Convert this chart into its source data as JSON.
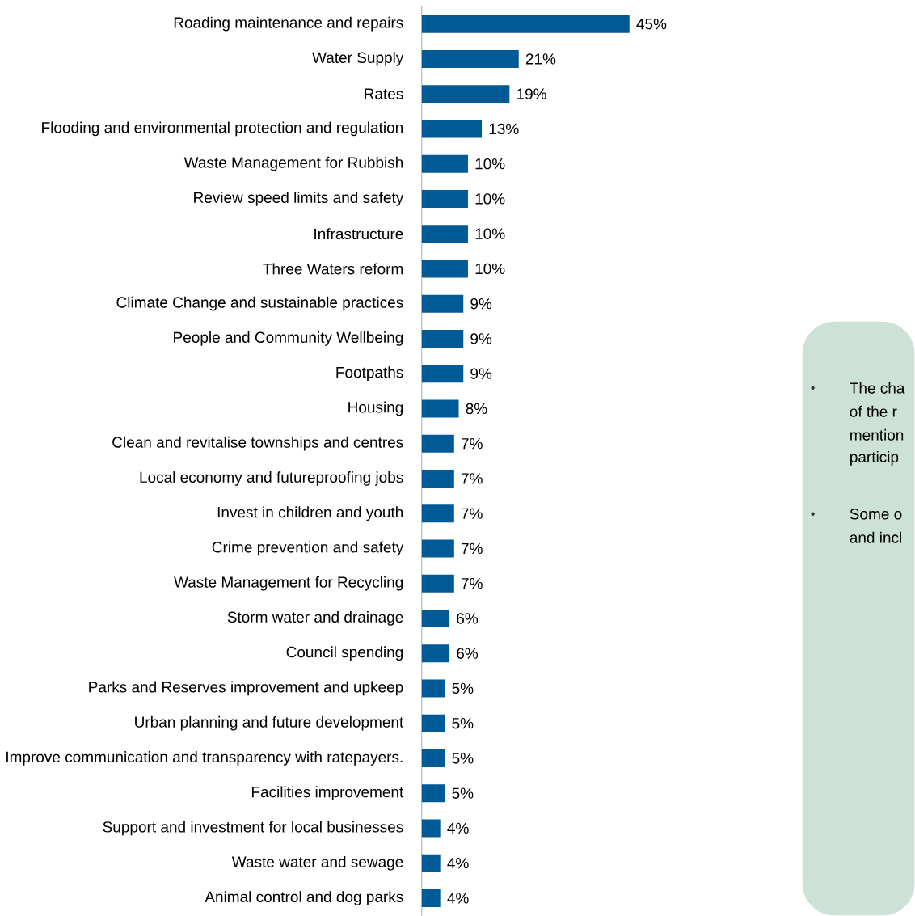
{
  "chart_data": {
    "type": "bar",
    "orientation": "horizontal",
    "tick_labels": "y",
    "color": "#005a96",
    "categories": [
      "Roading maintenance and repairs",
      "Water Supply",
      "Rates",
      "Flooding and environmental protection and regulation",
      "Waste Management for Rubbish",
      "Review speed limits and safety",
      "Infrastructure",
      "Three Waters reform",
      "Climate Change and sustainable practices",
      "People and Community Wellbeing",
      "Footpaths",
      "Housing",
      "Clean and revitalise townships and centres",
      "Local economy and futureproofing jobs",
      "Invest in children and youth",
      "Crime prevention and safety",
      "Waste Management for Recycling",
      "Storm water and drainage",
      "Council spending",
      "Parks and Reserves improvement and upkeep",
      "Urban planning and future development",
      "Improve communication and transparency with ratepayers.",
      "Facilities improvement",
      "Support and investment for local businesses",
      "Waste water and sewage",
      "Animal control and dog parks"
    ],
    "values": [
      45,
      21,
      19,
      13,
      10,
      10,
      10,
      10,
      9,
      9,
      9,
      8,
      7,
      7,
      7,
      7,
      7,
      6,
      6,
      5,
      5,
      5,
      5,
      4,
      4,
      4
    ],
    "value_labels": [
      "45%",
      "21%",
      "19%",
      "13%",
      "10%",
      "10%",
      "10%",
      "10%",
      "9%",
      "9%",
      "9%",
      "8%",
      "7%",
      "7%",
      "7%",
      "7%",
      "7%",
      "6%",
      "6%",
      "5%",
      "5%",
      "5%",
      "5%",
      "4%",
      "4%",
      "4%"
    ],
    "annotations": [
      "The cha",
      "of the r",
      "mention",
      "particip",
      "Some o",
      "and incl"
    ]
  }
}
